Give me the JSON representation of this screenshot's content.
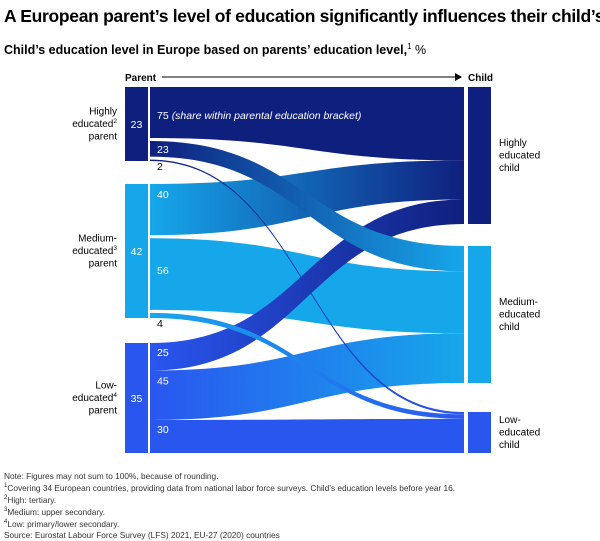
{
  "headline": "A European parent’s level of education significantly influences their child’s.",
  "subtitle": "Child’s education level in Europe based on parents’ education level,",
  "subtitle_note_mark": "1",
  "subtitle_unit": "%",
  "chart_data": {
    "type": "sankey",
    "left_header": "Parent",
    "right_header": "Child",
    "annotation": "(share within parental education bracket)",
    "colors": {
      "high": "#0f1f7d",
      "medium": "#16a7ea",
      "low": "#2a56f0"
    },
    "parents": [
      {
        "key": "high",
        "lines": [
          "Highly",
          "educated",
          "parent"
        ],
        "note_mark": "2",
        "note_line": 1,
        "share": 23
      },
      {
        "key": "medium",
        "lines": [
          "Medium-",
          "educated",
          "parent"
        ],
        "note_mark": "3",
        "note_line": 1,
        "share": 42
      },
      {
        "key": "low",
        "lines": [
          "Low-",
          "educated",
          "parent"
        ],
        "note_mark": "4",
        "note_line": 1,
        "share": 35
      }
    ],
    "children": [
      {
        "key": "high",
        "lines": [
          "Highly",
          "educated",
          "child"
        ]
      },
      {
        "key": "medium",
        "lines": [
          "Medium-",
          "educated",
          "child"
        ]
      },
      {
        "key": "low",
        "lines": [
          "Low-",
          "educated",
          "child"
        ]
      }
    ],
    "flows": [
      {
        "from": "high",
        "to": "high",
        "value": 75
      },
      {
        "from": "high",
        "to": "medium",
        "value": 23
      },
      {
        "from": "high",
        "to": "low",
        "value": 2
      },
      {
        "from": "medium",
        "to": "high",
        "value": 40
      },
      {
        "from": "medium",
        "to": "medium",
        "value": 56
      },
      {
        "from": "medium",
        "to": "low",
        "value": 4
      },
      {
        "from": "low",
        "to": "high",
        "value": 25
      },
      {
        "from": "low",
        "to": "medium",
        "value": 45
      },
      {
        "from": "low",
        "to": "low",
        "value": 30
      }
    ]
  },
  "notes": [
    {
      "mark": "",
      "text": "Note: Figures may not sum to 100%, because of rounding."
    },
    {
      "mark": "1",
      "text": "Covering 34 European countries, providing data from national labor force surveys. Child’s education levels before year 16."
    },
    {
      "mark": "2",
      "text": "High: tertiary."
    },
    {
      "mark": "3",
      "text": "Medium: upper secondary."
    },
    {
      "mark": "4",
      "text": "Low: primary/lower secondary."
    },
    {
      "mark": "",
      "text": "Source: Eurostat Labour Force Survey (LFS) 2021, EU-27 (2020) countries"
    }
  ]
}
